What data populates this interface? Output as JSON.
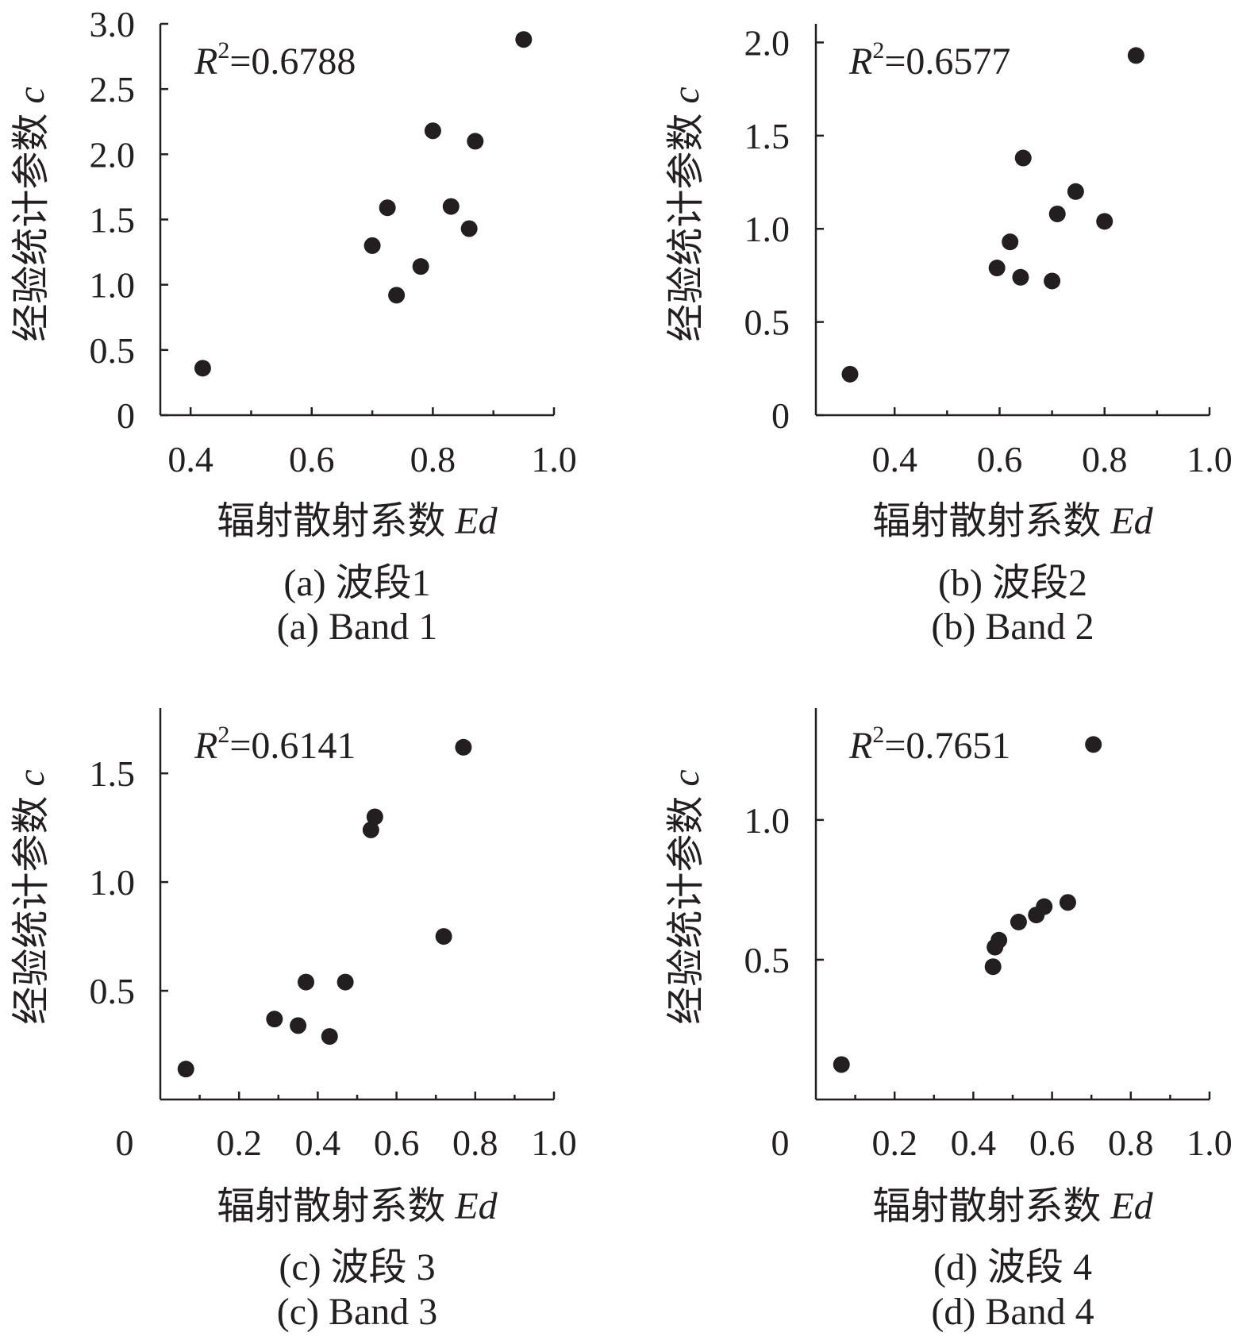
{
  "chart_data": [
    {
      "type": "scatter",
      "panel": "a",
      "xlabel": "辐射散射系数",
      "xlabel_var": "Ed",
      "ylabel": "经验统计参数",
      "ylabel_var": "c",
      "xlim": [
        0.35,
        1.0
      ],
      "ylim": [
        0,
        3.0
      ],
      "x_ticks": [
        "0.4",
        "0.6",
        "0.8",
        "1.0"
      ],
      "y_ticks": [
        "0",
        "0.5",
        "1.0",
        "1.5",
        "2.0",
        "2.5",
        "3.0"
      ],
      "x_tick_values": [
        0.4,
        0.6,
        0.8,
        1.0
      ],
      "y_tick_values": [
        0,
        0.5,
        1.0,
        1.5,
        2.0,
        2.5,
        3.0
      ],
      "x_minor_ticks": [
        0.5,
        0.7,
        0.9
      ],
      "r2_label": "R",
      "r2_sup": "2",
      "r2_value": "=0.6788",
      "caption_cn": "(a) 波段1",
      "caption_en": "(a) Band 1",
      "points": [
        {
          "x": 0.42,
          "y": 0.36
        },
        {
          "x": 0.7,
          "y": 1.3
        },
        {
          "x": 0.725,
          "y": 1.59
        },
        {
          "x": 0.74,
          "y": 0.92
        },
        {
          "x": 0.78,
          "y": 1.14
        },
        {
          "x": 0.8,
          "y": 2.18
        },
        {
          "x": 0.83,
          "y": 1.6
        },
        {
          "x": 0.86,
          "y": 1.43
        },
        {
          "x": 0.87,
          "y": 2.1
        },
        {
          "x": 0.95,
          "y": 2.88
        }
      ]
    },
    {
      "type": "scatter",
      "panel": "b",
      "xlabel": "辐射散射系数",
      "xlabel_var": "Ed",
      "ylabel": "经验统计参数",
      "ylabel_var": "c",
      "xlim": [
        0.25,
        1.0
      ],
      "ylim": [
        0,
        2.1
      ],
      "x_ticks": [
        "0.4",
        "0.6",
        "0.8",
        "1.0"
      ],
      "y_ticks": [
        "0",
        "0.5",
        "1.0",
        "1.5",
        "2.0"
      ],
      "x_tick_values": [
        0.4,
        0.6,
        0.8,
        1.0
      ],
      "y_tick_values": [
        0,
        0.5,
        1.0,
        1.5,
        2.0
      ],
      "x_minor_ticks": [
        0.5,
        0.7,
        0.9
      ],
      "r2_label": "R",
      "r2_sup": "2",
      "r2_value": "=0.6577",
      "caption_cn": "(b) 波段2",
      "caption_en": "(b) Band 2",
      "points": [
        {
          "x": 0.315,
          "y": 0.22
        },
        {
          "x": 0.595,
          "y": 0.79
        },
        {
          "x": 0.62,
          "y": 0.93
        },
        {
          "x": 0.64,
          "y": 0.74
        },
        {
          "x": 0.645,
          "y": 1.38
        },
        {
          "x": 0.7,
          "y": 0.72
        },
        {
          "x": 0.71,
          "y": 1.08
        },
        {
          "x": 0.745,
          "y": 1.2
        },
        {
          "x": 0.8,
          "y": 1.04
        },
        {
          "x": 0.86,
          "y": 1.93
        }
      ]
    },
    {
      "type": "scatter",
      "panel": "c",
      "xlabel": "辐射散射系数",
      "xlabel_var": "Ed",
      "ylabel": "经验统计参数",
      "ylabel_var": "c",
      "xlim": [
        0,
        1.0
      ],
      "ylim": [
        0,
        1.8
      ],
      "x_ticks": [
        "0",
        "0.2",
        "0.4",
        "0.6",
        "0.8",
        "1.0"
      ],
      "y_ticks": [
        "0.5",
        "1.0",
        "1.5"
      ],
      "x_tick_values": [
        0,
        0.2,
        0.4,
        0.6,
        0.8,
        1.0
      ],
      "y_tick_values": [
        0.5,
        1.0,
        1.5
      ],
      "x_minor_ticks": [
        0.1,
        0.3,
        0.5,
        0.7,
        0.9
      ],
      "r2_label": "R",
      "r2_sup": "2",
      "r2_value": "=0.6141",
      "caption_cn": "(c) 波段 3",
      "caption_en": "(c) Band 3",
      "points": [
        {
          "x": 0.065,
          "y": 0.14
        },
        {
          "x": 0.29,
          "y": 0.37
        },
        {
          "x": 0.35,
          "y": 0.34
        },
        {
          "x": 0.37,
          "y": 0.54
        },
        {
          "x": 0.43,
          "y": 0.29
        },
        {
          "x": 0.47,
          "y": 0.54
        },
        {
          "x": 0.535,
          "y": 1.24
        },
        {
          "x": 0.545,
          "y": 1.3
        },
        {
          "x": 0.72,
          "y": 0.75
        },
        {
          "x": 0.77,
          "y": 1.62
        }
      ]
    },
    {
      "type": "scatter",
      "panel": "d",
      "xlabel": "辐射散射系数",
      "xlabel_var": "Ed",
      "ylabel": "经验统计参数",
      "ylabel_var": "c",
      "xlim": [
        0,
        1.0
      ],
      "ylim": [
        0,
        1.4
      ],
      "x_ticks": [
        "0",
        "0.2",
        "0.4",
        "0.6",
        "0.8",
        "1.0"
      ],
      "y_ticks": [
        "0.5",
        "1.0"
      ],
      "x_tick_values": [
        0,
        0.2,
        0.4,
        0.6,
        0.8,
        1.0
      ],
      "y_tick_values": [
        0.5,
        1.0
      ],
      "x_minor_ticks": [
        0.1,
        0.3,
        0.5,
        0.7,
        0.9
      ],
      "r2_label": "R",
      "r2_sup": "2",
      "r2_value": "=0.7651",
      "caption_cn": "(d) 波段 4",
      "caption_en": "(d) Band 4",
      "points": [
        {
          "x": 0.065,
          "y": 0.125
        },
        {
          "x": 0.45,
          "y": 0.475
        },
        {
          "x": 0.455,
          "y": 0.545
        },
        {
          "x": 0.465,
          "y": 0.57
        },
        {
          "x": 0.515,
          "y": 0.635
        },
        {
          "x": 0.56,
          "y": 0.66
        },
        {
          "x": 0.58,
          "y": 0.69
        },
        {
          "x": 0.64,
          "y": 0.705
        },
        {
          "x": 0.705,
          "y": 1.27
        }
      ]
    }
  ]
}
